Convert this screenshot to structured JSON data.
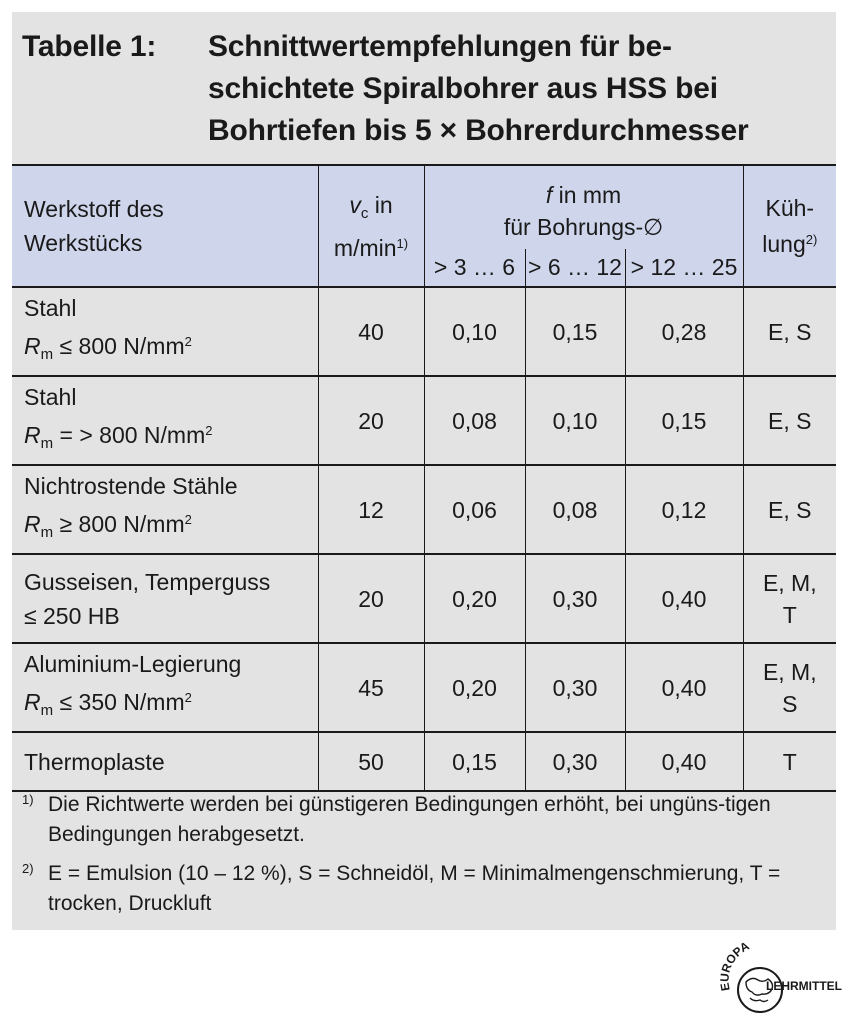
{
  "title": {
    "number": "Tabelle 1:",
    "lines": [
      "Schnittwertempfehlungen für be-",
      "schichtete Spiralbohrer aus HSS bei",
      "Bohrtiefen bis 5 × Bohrerdurchmesser"
    ]
  },
  "header": {
    "material_line1": "Werkstoff des",
    "material_line2": "Werkstücks",
    "vc_symbol": "v",
    "vc_sub": "c",
    "vc_in": " in",
    "vc_unit": "m/min",
    "vc_note": "1)",
    "f_symbol": "f",
    "f_line1_rest": " in mm",
    "f_line2": "für Bohrungs-∅",
    "f_ranges": [
      "> 3 … 6",
      "> 6 … 12",
      "> 12 … 25"
    ],
    "cool_line1": "Küh-",
    "cool_line2": "lung",
    "cool_note": "2)"
  },
  "rows": [
    {
      "mat1": "Stahl",
      "rm": true,
      "rm_rel": " ≤ 800 N/mm",
      "rm_sup": "2",
      "vc": "40",
      "f": [
        "0,10",
        "0,15",
        "0,28"
      ],
      "cool": [
        "E, S"
      ]
    },
    {
      "mat1": "Stahl",
      "rm": true,
      "rm_rel": " = > 800 N/mm",
      "rm_sup": "2",
      "vc": "20",
      "f": [
        "0,08",
        "0,10",
        "0,15"
      ],
      "cool": [
        "E, S"
      ]
    },
    {
      "mat1": "Nichtrostende Stähle",
      "rm": true,
      "rm_rel": " ≥ 800 N/mm",
      "rm_sup": "2",
      "vc": "12",
      "f": [
        "0,06",
        "0,08",
        "0,12"
      ],
      "cool": [
        "E, S"
      ]
    },
    {
      "mat1": "Gusseisen, Temperguss",
      "rm": false,
      "mat2": "≤ 250 HB",
      "vc": "20",
      "f": [
        "0,20",
        "0,30",
        "0,40"
      ],
      "cool": [
        "E, M,",
        "T"
      ]
    },
    {
      "mat1": "Aluminium-Legierung",
      "rm": true,
      "rm_rel": " ≤ 350 N/mm",
      "rm_sup": "2",
      "vc": "45",
      "f": [
        "0,20",
        "0,30",
        "0,40"
      ],
      "cool": [
        "E, M,",
        "S"
      ]
    },
    {
      "mat1": "Thermoplaste",
      "rm": false,
      "mat2": "",
      "vc": "50",
      "f": [
        "0,15",
        "0,30",
        "0,40"
      ],
      "cool": [
        "T"
      ]
    }
  ],
  "rm_symbol": "R",
  "rm_sub": "m",
  "footnotes": [
    {
      "marker": "1)",
      "text": "Die Richtwerte werden bei günstigeren Bedingungen erhöht, bei ungüns-tigen Bedingungen herabgesetzt."
    },
    {
      "marker": "2)",
      "text": "E = Emulsion (10 – 12 %), S = Schneidöl, M = Minimalmengenschmierung, T = trocken, Druckluft"
    }
  ],
  "logo": {
    "top_text": "EUROPA",
    "bottom_text": "LEHRMITTEL"
  }
}
